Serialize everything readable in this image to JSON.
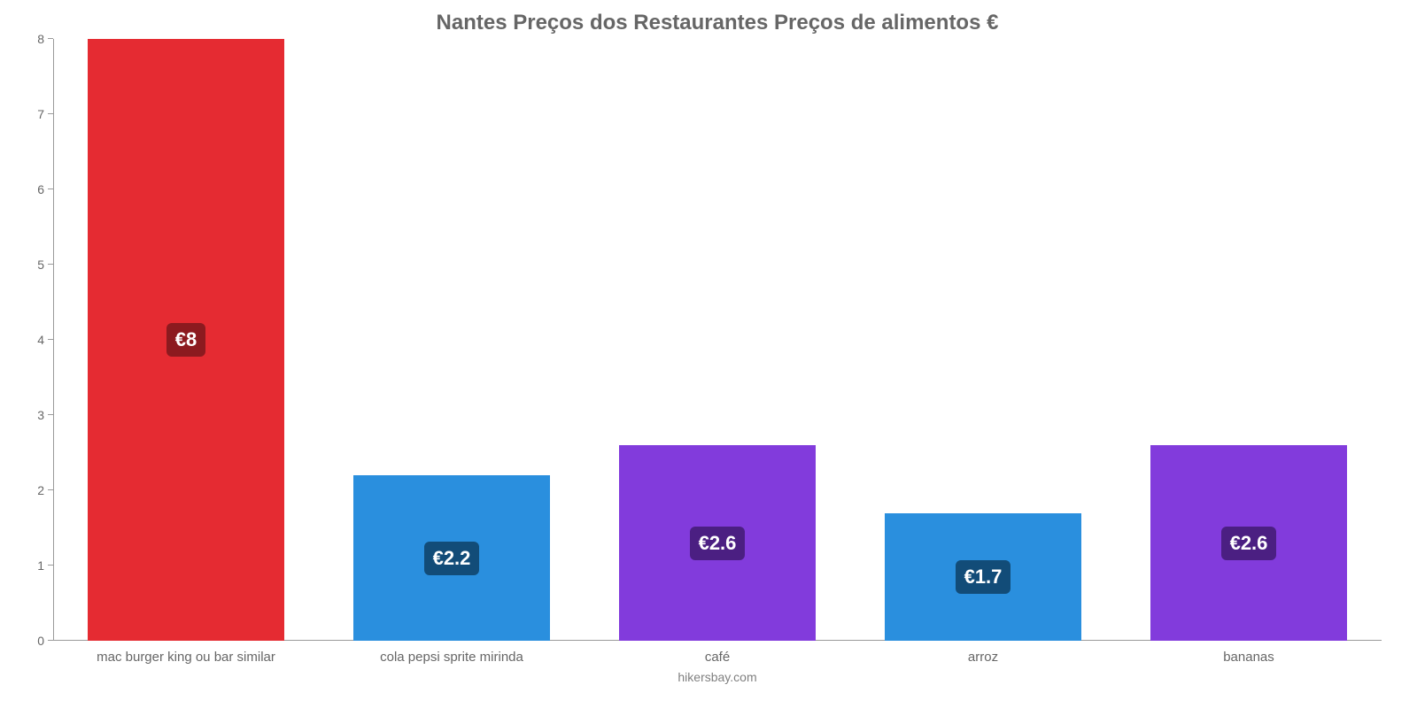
{
  "chart": {
    "type": "bar",
    "title": "Nantes Preços dos Restaurantes Preços de alimentos €",
    "title_fontsize": 24,
    "title_color": "#666666",
    "attribution": "hikersbay.com",
    "attribution_fontsize": 14,
    "attribution_color": "#808080",
    "background_color": "#ffffff",
    "axis_color": "#9a9a9a",
    "tick_label_color": "#666666",
    "tick_label_fontsize": 14,
    "x_label_fontsize": 15,
    "ylim": [
      0,
      8
    ],
    "yticks": [
      0,
      1,
      2,
      3,
      4,
      5,
      6,
      7,
      8
    ],
    "bar_width_pct": 74,
    "value_badge_fontsize": 22,
    "value_badge_radius": 6,
    "categories": [
      "mac burger king ou bar similar",
      "cola pepsi sprite mirinda",
      "café",
      "arroz",
      "bananas"
    ],
    "values": [
      8,
      2.2,
      2.6,
      1.7,
      2.6
    ],
    "value_labels": [
      "€8",
      "€2.2",
      "€2.6",
      "€1.7",
      "€2.6"
    ],
    "bar_colors": [
      "#e52b32",
      "#2a8fde",
      "#823bdc",
      "#2a8fde",
      "#823bdc"
    ],
    "badge_bg_colors": [
      "#8c1a1f",
      "#124c78",
      "#4b1f82",
      "#124c78",
      "#4b1f82"
    ]
  }
}
